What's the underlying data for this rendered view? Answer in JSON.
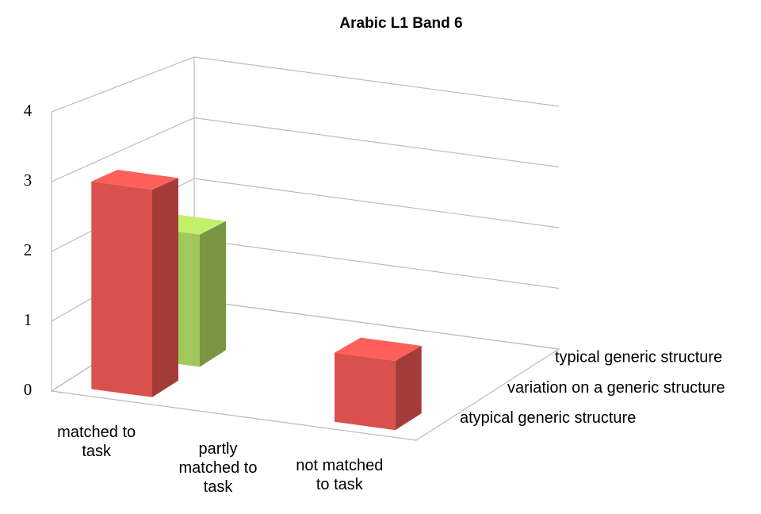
{
  "chart_data": {
    "type": "bar3d",
    "title": "Arabic L1 Band 6",
    "categories": [
      "matched to task",
      "partly matched to task",
      "not matched to task"
    ],
    "series": [
      {
        "name": "atypical generic structure",
        "color": "#d9504c",
        "values": [
          3,
          0,
          1
        ]
      },
      {
        "name": "variation on a generic structure",
        "color": "#a2c75a",
        "values": [
          2,
          0,
          0
        ]
      },
      {
        "name": "typical generic structure",
        "color": "#5b8fd4",
        "values": [
          0,
          0,
          0
        ]
      }
    ],
    "ylim": [
      0,
      4
    ],
    "yticks": [
      0,
      1,
      2,
      3,
      4
    ],
    "grid": true
  }
}
